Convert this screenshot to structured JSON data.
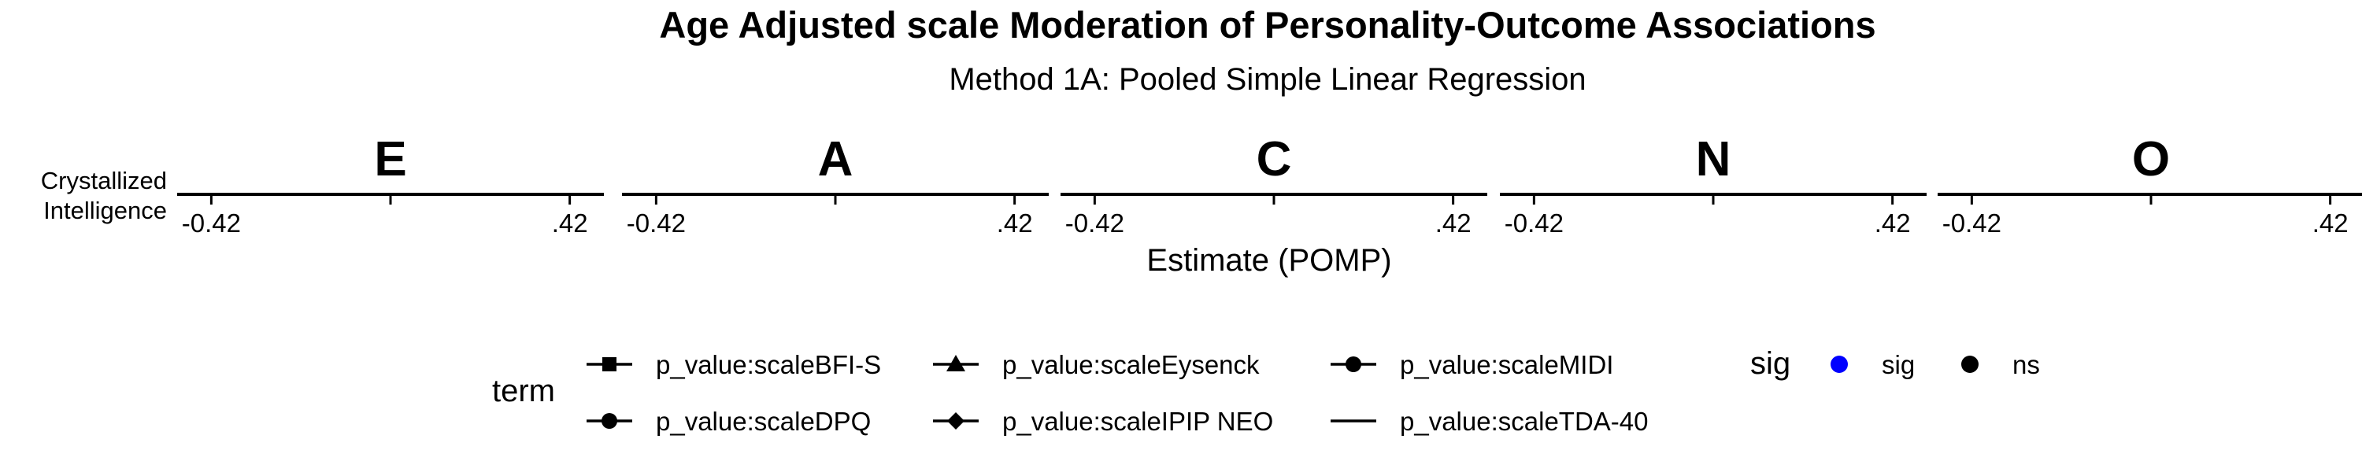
{
  "chart_data": {
    "type": "scatter",
    "title": "Age Adjusted scale Moderation of Personality-Outcome Associations",
    "subtitle": "Method 1A: Pooled Simple Linear Regression",
    "xlabel": "Estimate (POMP)",
    "ylabel": "",
    "row_labels": [
      "Crystallized",
      "Intelligence"
    ],
    "facets": [
      "E",
      "A",
      "C",
      "N",
      "O"
    ],
    "x_ticks": [
      "-0.42",
      ".42"
    ],
    "xlim": [
      -0.5,
      0.5
    ],
    "series": [],
    "legend": {
      "position": "bottom",
      "term": {
        "title": "term",
        "items": [
          {
            "label": "p_value:scaleBFI-S",
            "shape": "square"
          },
          {
            "label": "p_value:scaleEysenck",
            "shape": "triangle"
          },
          {
            "label": "p_value:scaleMIDI",
            "shape": "circle"
          },
          {
            "label": "p_value:scaleDPQ",
            "shape": "circle"
          },
          {
            "label": "p_value:scaleIPIP NEO",
            "shape": "diamond"
          },
          {
            "label": "p_value:scaleTDA-40",
            "shape": "none"
          }
        ]
      },
      "sig": {
        "title": "sig",
        "items": [
          {
            "label": "sig",
            "color": "#0000ff"
          },
          {
            "label": "ns",
            "color": "#000000"
          }
        ]
      }
    },
    "grid": false
  }
}
